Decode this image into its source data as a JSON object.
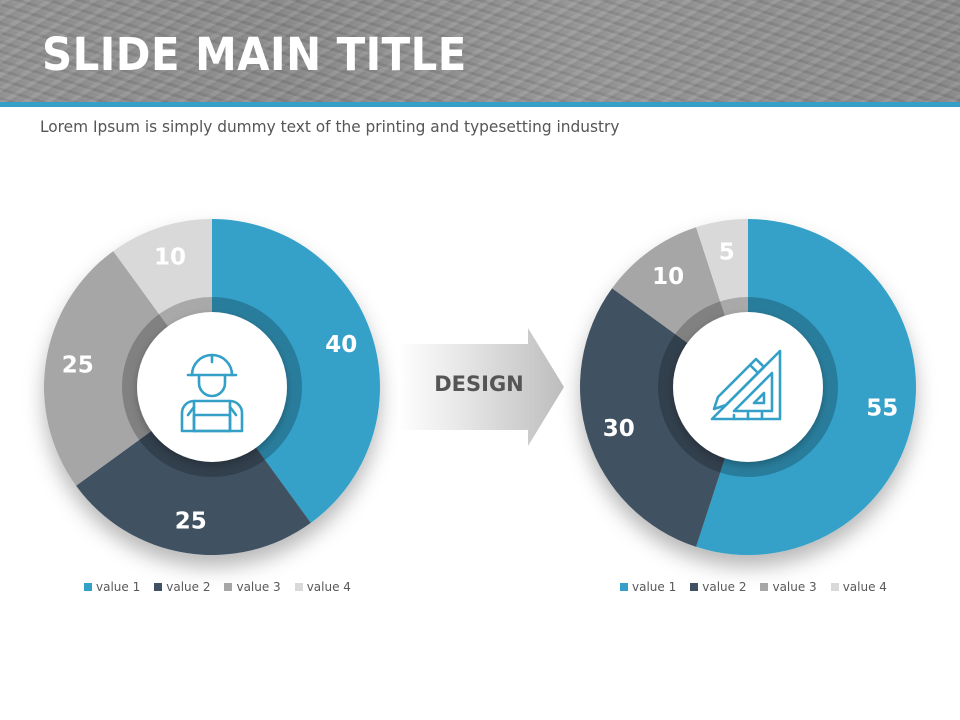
{
  "slide": {
    "title": "SLIDE MAIN TITLE",
    "subtitle": "Lorem Ipsum is simply dummy text of the printing and typesetting industry"
  },
  "arrow": {
    "label": "DESIGN"
  },
  "colors": {
    "accent": "#34a0c8",
    "value1": "#34a0c8",
    "value2": "#3f5162",
    "value3": "#a6a6a6",
    "value4": "#d9d9d9"
  },
  "icons": {
    "left": "construction-worker-icon",
    "right": "pencil-triangle-ruler-icon"
  },
  "chart_data": [
    {
      "type": "pie",
      "variant": "donut",
      "categories": [
        "value 1",
        "value 2",
        "value 3",
        "value 4"
      ],
      "values": [
        40,
        25,
        25,
        10
      ],
      "legend": [
        "value 1",
        "value 2",
        "value 3",
        "value 4"
      ],
      "legend_position": "bottom"
    },
    {
      "type": "pie",
      "variant": "donut",
      "categories": [
        "value 1",
        "value 2",
        "value 3",
        "value 4"
      ],
      "values": [
        55,
        30,
        10,
        5
      ],
      "legend": [
        "value 1",
        "value 2",
        "value 3",
        "value 4"
      ],
      "legend_position": "bottom"
    }
  ]
}
